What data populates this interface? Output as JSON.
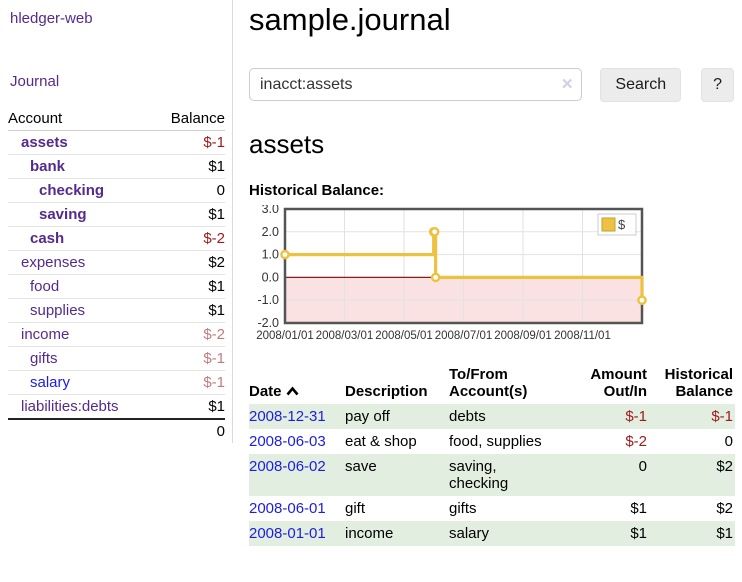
{
  "brand": "hledger-web",
  "sidebar": {
    "journal_link": "Journal",
    "accounts": {
      "header_account": "Account",
      "header_balance": "Balance",
      "rows": [
        {
          "name": "assets",
          "indent": 0,
          "balance": "$-1",
          "bold": true,
          "neg": "strong",
          "link": "purple"
        },
        {
          "name": "bank",
          "indent": 1,
          "balance": "$1",
          "bold": true,
          "neg": "none",
          "link": "purple"
        },
        {
          "name": "checking",
          "indent": 2,
          "balance": "0",
          "bold": true,
          "neg": "none",
          "link": "purple"
        },
        {
          "name": "saving",
          "indent": 2,
          "balance": "$1",
          "bold": true,
          "neg": "none",
          "link": "purple"
        },
        {
          "name": "cash",
          "indent": 1,
          "balance": "$-2",
          "bold": true,
          "neg": "strong",
          "link": "purple"
        },
        {
          "name": "expenses",
          "indent": 0,
          "balance": "$2",
          "bold": false,
          "neg": "none",
          "link": "purple"
        },
        {
          "name": "food",
          "indent": 1,
          "balance": "$1",
          "bold": false,
          "neg": "none",
          "link": "purple"
        },
        {
          "name": "supplies",
          "indent": 1,
          "balance": "$1",
          "bold": false,
          "neg": "none",
          "link": "purple"
        },
        {
          "name": "income",
          "indent": 0,
          "balance": "$-2",
          "bold": false,
          "neg": "soft",
          "link": "purple"
        },
        {
          "name": "gifts",
          "indent": 1,
          "balance": "$-1",
          "bold": false,
          "neg": "soft",
          "link": "purple"
        },
        {
          "name": "salary",
          "indent": 1,
          "balance": "$-1",
          "bold": false,
          "neg": "soft",
          "link": "blue"
        },
        {
          "name": "liabilities:debts",
          "indent": 0,
          "balance": "$1",
          "bold": false,
          "neg": "none",
          "link": "purple"
        }
      ],
      "total": "0"
    }
  },
  "header": {
    "title": "sample.journal"
  },
  "search": {
    "value": "inacct:assets",
    "clear_icon": "✕",
    "search_button": "Search",
    "help_button": "?"
  },
  "register": {
    "heading": "assets",
    "chart_label": "Historical Balance:"
  },
  "chart_data": {
    "type": "line",
    "step": true,
    "title": "Historical Balance:",
    "series": [
      {
        "name": "$",
        "color": "#edc240",
        "points": [
          [
            "2008-01-01",
            1
          ],
          [
            "2008-06-01",
            2
          ],
          [
            "2008-06-02",
            2
          ],
          [
            "2008-06-03",
            0
          ],
          [
            "2008-12-31",
            -1
          ]
        ]
      }
    ],
    "x_range": [
      "2008-01-01",
      "2008-12-31"
    ],
    "x_tick_labels": [
      "2008/01/01",
      "2008/03/01",
      "2008/05/01",
      "2008/07/01",
      "2008/09/01",
      "2008/11/01"
    ],
    "y_ticks": [
      "3.0",
      "2.0",
      "1.0",
      "0.0",
      "-1.0",
      "-2.0"
    ],
    "ylim": [
      -2,
      3
    ],
    "grid": true,
    "grid_color": "#e2e2e2",
    "border_color": "#545454",
    "negative_region_fill": "#fbe2e2",
    "zero_line_color": "#8b1a1a",
    "marker_fill": "#ffffff",
    "legend_position": "top-right",
    "legend_label": "$"
  },
  "transactions": {
    "headers": {
      "date": "Date",
      "sort_icon": "chevron-up",
      "description": "Description",
      "tofrom_line1": "To/From",
      "tofrom_line2": "Account(s)",
      "amount_line1": "Amount",
      "amount_line2": "Out/In",
      "balance_line1": "Historical",
      "balance_line2": "Balance"
    },
    "rows": [
      {
        "date": "2008-12-31",
        "description": "pay off",
        "accounts": "debts",
        "amount": "$-1",
        "amount_neg": true,
        "balance": "$-1",
        "balance_neg": true
      },
      {
        "date": "2008-06-03",
        "description": "eat & shop",
        "accounts": "food, supplies",
        "amount": "$-2",
        "amount_neg": true,
        "balance": "0",
        "balance_neg": false
      },
      {
        "date": "2008-06-02",
        "description": "save",
        "accounts": "saving, checking",
        "amount": "0",
        "amount_neg": false,
        "balance": "$2",
        "balance_neg": false
      },
      {
        "date": "2008-06-01",
        "description": "gift",
        "accounts": "gifts",
        "amount": "$1",
        "amount_neg": false,
        "balance": "$2",
        "balance_neg": false
      },
      {
        "date": "2008-01-01",
        "description": "income",
        "accounts": "salary",
        "amount": "$1",
        "amount_neg": false,
        "balance": "$1",
        "balance_neg": false
      }
    ]
  }
}
